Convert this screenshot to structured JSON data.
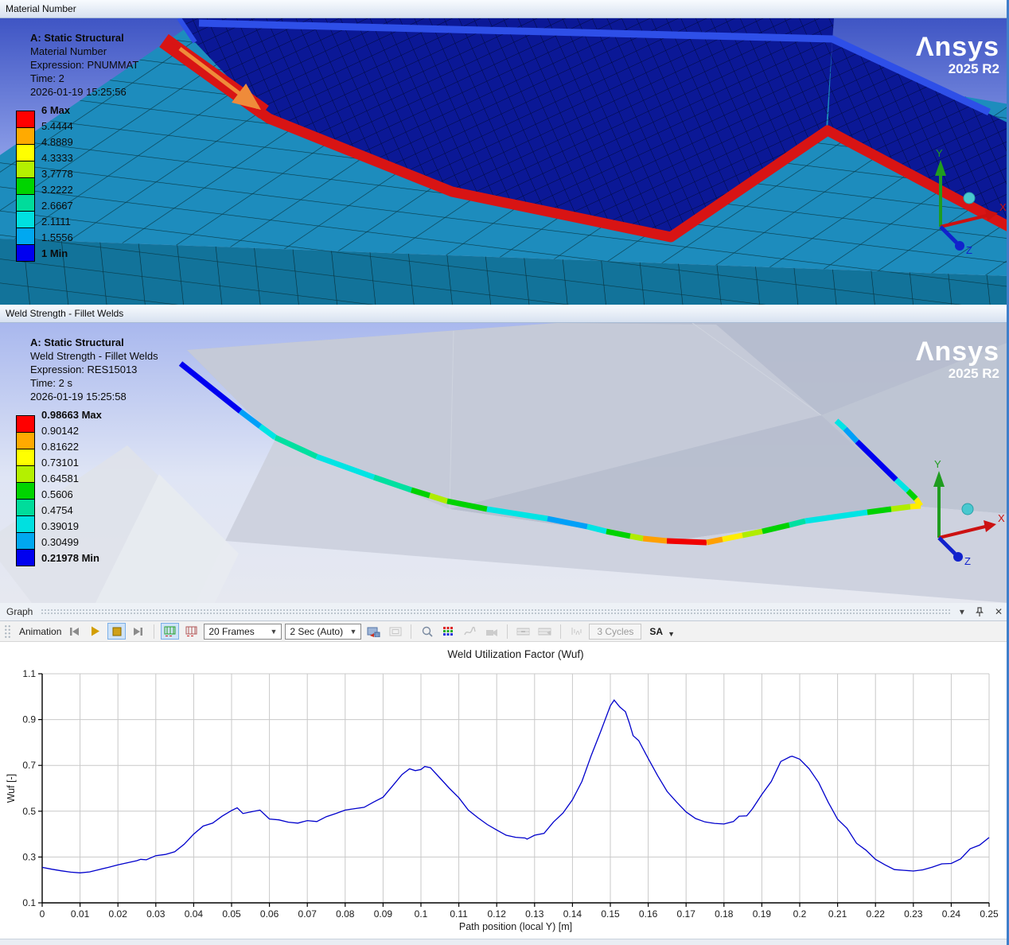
{
  "logo": {
    "brand": "Λnsys",
    "version": "2025 R2"
  },
  "triad": {
    "x": "X",
    "y": "Y",
    "z": "Z"
  },
  "panes": {
    "material": {
      "title": "Material Number",
      "info": [
        "A: Static Structural",
        "Material Number",
        "Expression: PNUMMAT",
        "Time: 2",
        "2026-01-19 15:25:56"
      ],
      "legend": {
        "labels": [
          "6 Max",
          "5.4444",
          "4.8889",
          "4.3333",
          "3.7778",
          "3.2222",
          "2.6667",
          "2.1111",
          "1.5556",
          "1 Min"
        ],
        "colors": [
          "#ff0000",
          "#ffaa00",
          "#ffff00",
          "#b4f000",
          "#00d400",
          "#00dc9b",
          "#00e0e0",
          "#00a8f0",
          "#0000f0"
        ]
      }
    },
    "weld": {
      "title": "Weld Strength - Fillet Welds",
      "info": [
        "A: Static Structural",
        "Weld Strength - Fillet Welds",
        "Expression: RES15013",
        "Time: 2 s",
        "2026-01-19 15:25:58"
      ],
      "legend": {
        "labels": [
          "0.98663 Max",
          "0.90142",
          "0.81622",
          "0.73101",
          "0.64581",
          "0.5606",
          "0.4754",
          "0.39019",
          "0.30499",
          "0.21978 Min"
        ],
        "colors": [
          "#ff0000",
          "#ffaa00",
          "#ffff00",
          "#b4f000",
          "#00d400",
          "#00dc9b",
          "#00e0e0",
          "#00a8f0",
          "#0000f0"
        ]
      },
      "path_segments": [
        {
          "color": "#0000f0",
          "p": [
            [
              227,
              51
            ],
            [
              302,
              111
            ]
          ]
        },
        {
          "color": "#00a0f8",
          "p": [
            [
              302,
              111
            ],
            [
              327,
              130
            ]
          ]
        },
        {
          "color": "#00e4e4",
          "p": [
            [
              327,
              130
            ],
            [
              346,
              144
            ]
          ]
        },
        {
          "color": "#00e0a0",
          "p": [
            [
              346,
              144
            ],
            [
              398,
              168
            ]
          ]
        },
        {
          "color": "#00e4e4",
          "p": [
            [
              398,
              168
            ],
            [
              470,
              194
            ]
          ]
        },
        {
          "color": "#00e0a0",
          "p": [
            [
              470,
              194
            ],
            [
              517,
              210
            ]
          ]
        },
        {
          "color": "#00d200",
          "p": [
            [
              517,
              210
            ],
            [
              540,
              217
            ]
          ]
        },
        {
          "color": "#b0ec00",
          "p": [
            [
              540,
              217
            ],
            [
              562,
              224
            ]
          ]
        },
        {
          "color": "#00d200",
          "p": [
            [
              562,
              224
            ],
            [
              612,
              234
            ]
          ]
        },
        {
          "color": "#00e4e4",
          "p": [
            [
              612,
              234
            ],
            [
              688,
              246
            ]
          ]
        },
        {
          "color": "#00a0f8",
          "p": [
            [
              688,
              246
            ],
            [
              738,
              256
            ]
          ]
        },
        {
          "color": "#00e4e4",
          "p": [
            [
              738,
              256
            ],
            [
              762,
              262
            ]
          ]
        },
        {
          "color": "#00d200",
          "p": [
            [
              762,
              262
            ],
            [
              792,
              268
            ]
          ]
        },
        {
          "color": "#b0ec00",
          "p": [
            [
              792,
              268
            ],
            [
              808,
              271
            ]
          ]
        },
        {
          "color": "#ffa000",
          "p": [
            [
              808,
              271
            ],
            [
              838,
              274
            ]
          ]
        },
        {
          "color": "#f00000",
          "p": [
            [
              838,
              274
            ],
            [
              888,
              276
            ]
          ]
        },
        {
          "color": "#ffa000",
          "p": [
            [
              888,
              276
            ],
            [
              908,
              272
            ]
          ]
        },
        {
          "color": "#ffec00",
          "p": [
            [
              908,
              272
            ],
            [
              933,
              267
            ]
          ]
        },
        {
          "color": "#b0ec00",
          "p": [
            [
              933,
              267
            ],
            [
              958,
              262
            ]
          ]
        },
        {
          "color": "#00d200",
          "p": [
            [
              958,
              262
            ],
            [
              992,
              254
            ]
          ]
        },
        {
          "color": "#00e0a0",
          "p": [
            [
              992,
              254
            ],
            [
              1012,
              249
            ]
          ]
        },
        {
          "color": "#00e4e4",
          "p": [
            [
              1012,
              249
            ],
            [
              1090,
              238
            ]
          ]
        },
        {
          "color": "#00d200",
          "p": [
            [
              1090,
              238
            ],
            [
              1120,
              234
            ]
          ]
        },
        {
          "color": "#b0ec00",
          "p": [
            [
              1120,
              234
            ],
            [
              1144,
              231
            ]
          ]
        },
        {
          "color": "#ffec00",
          "p": [
            [
              1144,
              231
            ],
            [
              1157,
              230
            ]
          ]
        },
        {
          "color": "#ffec00",
          "p": [
            [
              1157,
              230
            ],
            [
              1151,
              221
            ]
          ]
        },
        {
          "color": "#00d200",
          "p": [
            [
              1151,
              221
            ],
            [
              1141,
              211
            ]
          ]
        },
        {
          "color": "#00e4e4",
          "p": [
            [
              1141,
              211
            ],
            [
              1126,
              197
            ]
          ]
        },
        {
          "color": "#0000f0",
          "p": [
            [
              1126,
              197
            ],
            [
              1077,
              149
            ]
          ]
        },
        {
          "color": "#00a0f8",
          "p": [
            [
              1077,
              149
            ],
            [
              1062,
              133
            ]
          ]
        },
        {
          "color": "#00e4e4",
          "p": [
            [
              1062,
              133
            ],
            [
              1051,
              123
            ]
          ]
        }
      ]
    },
    "graph": {
      "title": "Graph",
      "window_icons": {
        "menu": "▾",
        "close": "✕"
      },
      "toolbar": {
        "animation": "Animation",
        "frames": "20 Frames",
        "duration": "2 Sec (Auto)",
        "cycles": "3 Cycles",
        "sa": "SA"
      }
    }
  },
  "chart_data": {
    "type": "line",
    "title": "Weld Utilization Factor (Wuf)",
    "xlabel": "Path position (local Y) [m]",
    "ylabel": "Wuf [-]",
    "xlim": [
      0,
      0.25
    ],
    "ylim": [
      0.1,
      1.1
    ],
    "grid": true,
    "line_color": "#0000cc",
    "xticks": [
      0,
      0.01,
      0.02,
      0.03,
      0.04,
      0.05,
      0.06,
      0.07,
      0.08,
      0.09,
      0.1,
      0.11,
      0.12,
      0.13,
      0.14,
      0.15,
      0.16,
      0.17,
      0.18,
      0.19,
      0.2,
      0.21,
      0.22,
      0.23,
      0.24,
      0.25
    ],
    "xtick_labels": [
      "0",
      "0.01",
      "0.02",
      "0.03",
      "0.04",
      "0.05",
      "0.06",
      "0.07",
      "0.08",
      "0.09",
      "0.1",
      "0.11",
      "0.12",
      "0.13",
      "0.14",
      "0.15",
      "0.16",
      "0.17",
      "0.18",
      "0.19",
      "0.2",
      "0.21",
      "0.22",
      "0.23",
      "0.24",
      "0.25"
    ],
    "yticks": [
      0.1,
      0.3,
      0.5,
      0.7,
      0.9,
      1.1
    ],
    "ytick_labels": [
      "0.1",
      "0.3",
      "0.5",
      "0.7",
      "0.9",
      "1.1"
    ],
    "series": [
      {
        "name": "Wuf",
        "points": [
          [
            0,
            0.255
          ],
          [
            0.0025,
            0.247
          ],
          [
            0.005,
            0.24
          ],
          [
            0.0075,
            0.234
          ],
          [
            0.01,
            0.231
          ],
          [
            0.0125,
            0.235
          ],
          [
            0.015,
            0.245
          ],
          [
            0.0175,
            0.255
          ],
          [
            0.02,
            0.266
          ],
          [
            0.0225,
            0.275
          ],
          [
            0.025,
            0.284
          ],
          [
            0.026,
            0.29
          ],
          [
            0.0275,
            0.288
          ],
          [
            0.03,
            0.306
          ],
          [
            0.0325,
            0.311
          ],
          [
            0.035,
            0.323
          ],
          [
            0.0375,
            0.356
          ],
          [
            0.04,
            0.4
          ],
          [
            0.0425,
            0.435
          ],
          [
            0.045,
            0.448
          ],
          [
            0.0475,
            0.478
          ],
          [
            0.05,
            0.503
          ],
          [
            0.0515,
            0.515
          ],
          [
            0.053,
            0.49
          ],
          [
            0.055,
            0.497
          ],
          [
            0.0575,
            0.505
          ],
          [
            0.06,
            0.466
          ],
          [
            0.0625,
            0.462
          ],
          [
            0.065,
            0.452
          ],
          [
            0.0675,
            0.448
          ],
          [
            0.07,
            0.459
          ],
          [
            0.0725,
            0.455
          ],
          [
            0.075,
            0.476
          ],
          [
            0.0775,
            0.49
          ],
          [
            0.08,
            0.505
          ],
          [
            0.0825,
            0.511
          ],
          [
            0.085,
            0.517
          ],
          [
            0.0875,
            0.54
          ],
          [
            0.09,
            0.561
          ],
          [
            0.0925,
            0.61
          ],
          [
            0.095,
            0.66
          ],
          [
            0.097,
            0.685
          ],
          [
            0.0985,
            0.677
          ],
          [
            0.1,
            0.682
          ],
          [
            0.101,
            0.695
          ],
          [
            0.1025,
            0.69
          ],
          [
            0.105,
            0.645
          ],
          [
            0.1075,
            0.6
          ],
          [
            0.11,
            0.559
          ],
          [
            0.1125,
            0.505
          ],
          [
            0.115,
            0.472
          ],
          [
            0.1175,
            0.442
          ],
          [
            0.12,
            0.418
          ],
          [
            0.1225,
            0.395
          ],
          [
            0.125,
            0.386
          ],
          [
            0.1275,
            0.383
          ],
          [
            0.128,
            0.378
          ],
          [
            0.13,
            0.395
          ],
          [
            0.1325,
            0.403
          ],
          [
            0.135,
            0.453
          ],
          [
            0.1375,
            0.492
          ],
          [
            0.14,
            0.55
          ],
          [
            0.1425,
            0.63
          ],
          [
            0.145,
            0.745
          ],
          [
            0.1475,
            0.85
          ],
          [
            0.15,
            0.96
          ],
          [
            0.151,
            0.985
          ],
          [
            0.1525,
            0.955
          ],
          [
            0.154,
            0.934
          ],
          [
            0.155,
            0.886
          ],
          [
            0.156,
            0.83
          ],
          [
            0.1575,
            0.808
          ],
          [
            0.16,
            0.73
          ],
          [
            0.1625,
            0.655
          ],
          [
            0.165,
            0.586
          ],
          [
            0.1675,
            0.54
          ],
          [
            0.17,
            0.497
          ],
          [
            0.1725,
            0.468
          ],
          [
            0.175,
            0.453
          ],
          [
            0.1775,
            0.447
          ],
          [
            0.18,
            0.444
          ],
          [
            0.1825,
            0.455
          ],
          [
            0.184,
            0.478
          ],
          [
            0.186,
            0.48
          ],
          [
            0.1875,
            0.51
          ],
          [
            0.19,
            0.573
          ],
          [
            0.1925,
            0.63
          ],
          [
            0.195,
            0.717
          ],
          [
            0.1975,
            0.738
          ],
          [
            0.198,
            0.74
          ],
          [
            0.2,
            0.727
          ],
          [
            0.2025,
            0.685
          ],
          [
            0.205,
            0.625
          ],
          [
            0.2075,
            0.54
          ],
          [
            0.21,
            0.465
          ],
          [
            0.2125,
            0.425
          ],
          [
            0.215,
            0.36
          ],
          [
            0.2175,
            0.33
          ],
          [
            0.22,
            0.29
          ],
          [
            0.2225,
            0.266
          ],
          [
            0.225,
            0.245
          ],
          [
            0.2275,
            0.242
          ],
          [
            0.23,
            0.239
          ],
          [
            0.2325,
            0.244
          ],
          [
            0.235,
            0.256
          ],
          [
            0.2375,
            0.27
          ],
          [
            0.24,
            0.272
          ],
          [
            0.2425,
            0.292
          ],
          [
            0.245,
            0.336
          ],
          [
            0.2475,
            0.352
          ],
          [
            0.25,
            0.385
          ]
        ]
      }
    ]
  }
}
